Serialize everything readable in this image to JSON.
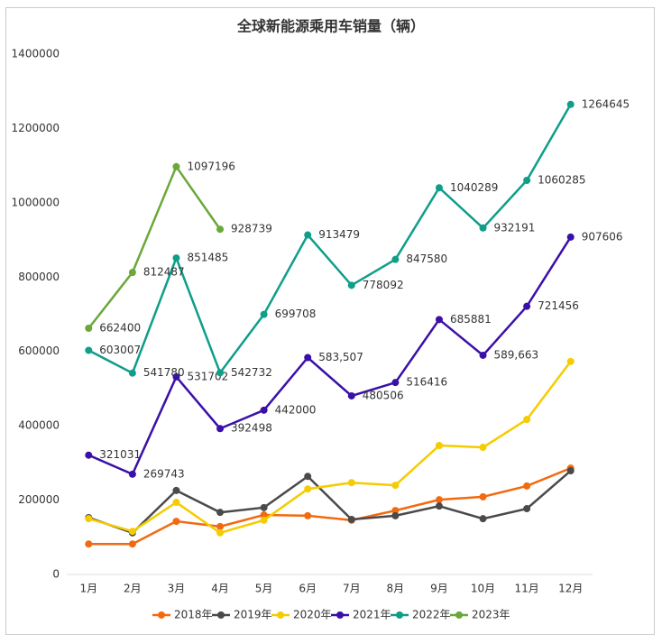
{
  "chart_data": {
    "type": "line",
    "title": "全球新能源乘用车销量（辆）",
    "categories": [
      "1月",
      "2月",
      "3月",
      "4月",
      "5月",
      "6月",
      "7月",
      "8月",
      "9月",
      "10月",
      "11月",
      "12月"
    ],
    "ylim": [
      0,
      1400000
    ],
    "yticks": [
      0,
      200000,
      400000,
      600000,
      800000,
      1000000,
      1200000,
      1400000
    ],
    "grid": false,
    "legend": "bottom",
    "series": [
      {
        "name": "2018年",
        "color": "#f26a10",
        "values": [
          82000,
          82000,
          143000,
          129000,
          160000,
          158000,
          146000,
          172000,
          201000,
          209000,
          238000,
          286000
        ]
      },
      {
        "name": "2019年",
        "color": "#4a4a4a",
        "values": [
          153000,
          112000,
          226000,
          167000,
          180000,
          264000,
          148000,
          158000,
          184000,
          150000,
          177000,
          279000
        ]
      },
      {
        "name": "2020年",
        "color": "#f5cc00",
        "values": [
          150000,
          116000,
          194000,
          112000,
          146000,
          230000,
          247000,
          240000,
          347000,
          342000,
          417000,
          573000
        ]
      },
      {
        "name": "2021年",
        "color": "#3a10a8",
        "values": [
          321031,
          269743,
          531702,
          392498,
          442000,
          583507,
          480506,
          516416,
          685881,
          589663,
          721456,
          907606
        ],
        "value_labels": [
          "321031",
          "269743",
          "531702",
          "392498",
          "442000",
          "583,507",
          "480506",
          "516416",
          "685881",
          "589,663",
          "721456",
          "907606"
        ]
      },
      {
        "name": "2022年",
        "color": "#0e9e8a",
        "values": [
          603007,
          541780,
          851485,
          542732,
          699708,
          913479,
          778092,
          847580,
          1040289,
          932191,
          1060285,
          1264645
        ],
        "value_labels": [
          "603007",
          "541780",
          "851485",
          "542732",
          "699708",
          "913479",
          "778092",
          "847580",
          "1040289",
          "932191",
          "1060285",
          "1264645"
        ]
      },
      {
        "name": "2023年",
        "color": "#6aa83a",
        "values": [
          662400,
          812487,
          1097196,
          928739,
          null,
          null,
          null,
          null,
          null,
          null,
          null,
          null
        ],
        "value_labels": [
          "662400",
          "812487",
          "1097196",
          "928739",
          null,
          null,
          null,
          null,
          null,
          null,
          null,
          null
        ]
      }
    ]
  }
}
